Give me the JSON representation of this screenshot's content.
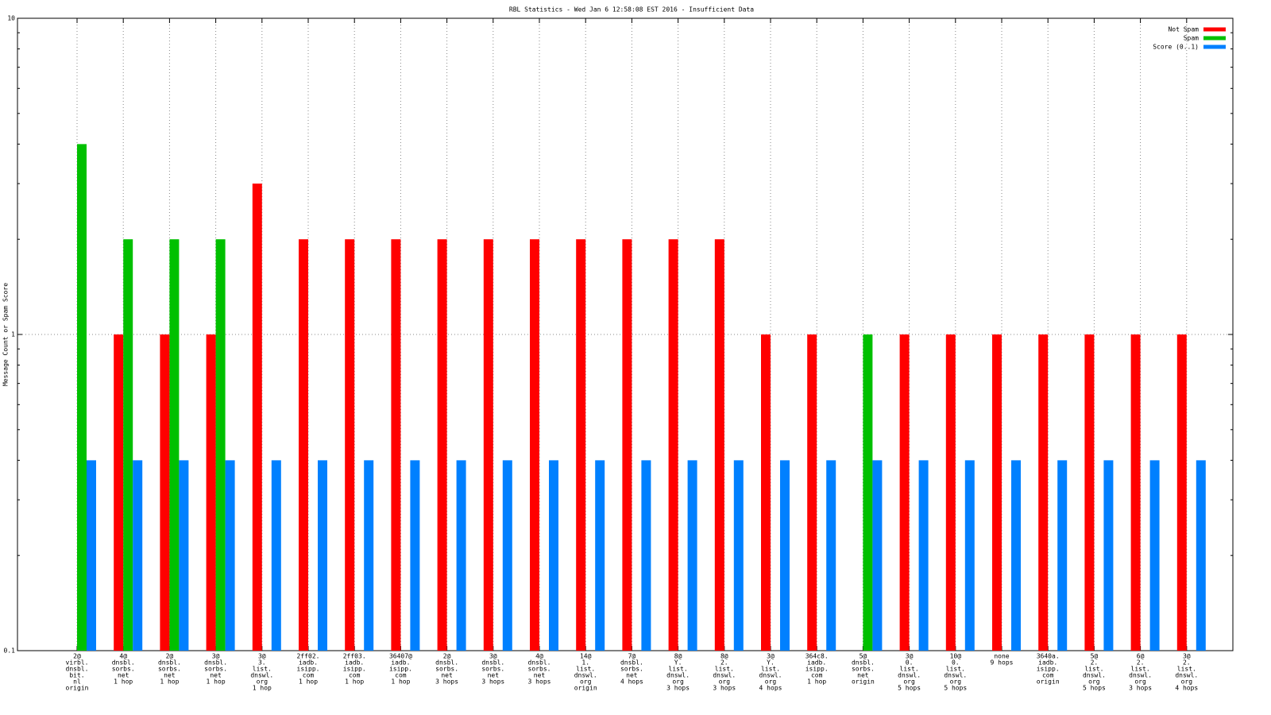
{
  "chart_data": {
    "type": "bar",
    "title": "RBL Statistics - Wed Jan  6 12:58:08 EST 2016 - Insufficient Data",
    "y_label": "Message Count or Spam Score",
    "log_y": true,
    "grid": true,
    "legend_position": "top-right",
    "ylim": [
      0.1,
      10
    ],
    "yticks": [
      0.1,
      1,
      10
    ],
    "categories": [
      [
        "2@",
        "virbl.",
        "dnsbl.",
        "bit.",
        "nl",
        "origin"
      ],
      [
        "4@",
        "dnsbl.",
        "sorbs.",
        "net",
        "1 hop"
      ],
      [
        "2@",
        "dnsbl.",
        "sorbs.",
        "net",
        "1 hop"
      ],
      [
        "3@",
        "dnsbl.",
        "sorbs.",
        "net",
        "1 hop"
      ],
      [
        "3@",
        "3.",
        "list.",
        "dnswl.",
        "org",
        "1 hop"
      ],
      [
        "2ff02.",
        "iadb.",
        "isipp.",
        "com",
        "1 hop"
      ],
      [
        "2ff03.",
        "iadb.",
        "isipp.",
        "com",
        "1 hop"
      ],
      [
        "36407@",
        "iadb.",
        "isipp.",
        "com",
        "1 hop"
      ],
      [
        "2@",
        "dnsbl.",
        "sorbs.",
        "net",
        "3 hops"
      ],
      [
        "3@",
        "dnsbl.",
        "sorbs.",
        "net",
        "3 hops"
      ],
      [
        "4@",
        "dnsbl.",
        "sorbs.",
        "net",
        "3 hops"
      ],
      [
        "14@",
        "1.",
        "list.",
        "dnswl.",
        "org",
        "origin"
      ],
      [
        "7@",
        "dnsbl.",
        "sorbs.",
        "net",
        "4 hops"
      ],
      [
        "8@",
        "Y.",
        "list.",
        "dnswl.",
        "org",
        "3 hops"
      ],
      [
        "8@",
        "2.",
        "list.",
        "dnswl.",
        "org",
        "3 hops"
      ],
      [
        "3@",
        "Y.",
        "list.",
        "dnswl.",
        "org",
        "4 hops"
      ],
      [
        "364c8.",
        "iadb.",
        "isipp.",
        "com",
        "1 hop"
      ],
      [
        "5@",
        "dnsbl.",
        "sorbs.",
        "net",
        "origin"
      ],
      [
        "3@",
        "0.",
        "list.",
        "dnswl.",
        "org",
        "5 hops"
      ],
      [
        "10@",
        "0.",
        "list.",
        "dnswl.",
        "org",
        "5 hops"
      ],
      [
        "none",
        "9 hops"
      ],
      [
        "3640a.",
        "iadb.",
        "isipp.",
        "com",
        "origin"
      ],
      [
        "5@",
        "2.",
        "list.",
        "dnswl.",
        "org",
        "5 hops"
      ],
      [
        "6@",
        "2.",
        "list.",
        "dnswl.",
        "org",
        "3 hops"
      ],
      [
        "3@",
        "2.",
        "list.",
        "dnswl.",
        "org",
        "4 hops"
      ]
    ],
    "series": [
      {
        "name": "Not Spam",
        "color": "#ff0000",
        "values": [
          null,
          1,
          1,
          1,
          3,
          2,
          2,
          2,
          2,
          2,
          2,
          2,
          2,
          2,
          2,
          1,
          1,
          null,
          1,
          1,
          1,
          1,
          1,
          1,
          1
        ]
      },
      {
        "name": "Spam",
        "color": "#00c000",
        "values": [
          4,
          2,
          2,
          2,
          null,
          null,
          null,
          null,
          null,
          null,
          null,
          null,
          null,
          null,
          null,
          null,
          null,
          1,
          null,
          null,
          null,
          null,
          null,
          null,
          null
        ]
      },
      {
        "name": "Score (0..1)",
        "color": "#0080ff",
        "values": [
          0.4,
          0.4,
          0.4,
          0.4,
          0.4,
          0.4,
          0.4,
          0.4,
          0.4,
          0.4,
          0.4,
          0.4,
          0.4,
          0.4,
          0.4,
          0.4,
          0.4,
          0.4,
          0.4,
          0.4,
          0.4,
          0.4,
          0.4,
          0.4,
          0.4
        ]
      }
    ]
  }
}
